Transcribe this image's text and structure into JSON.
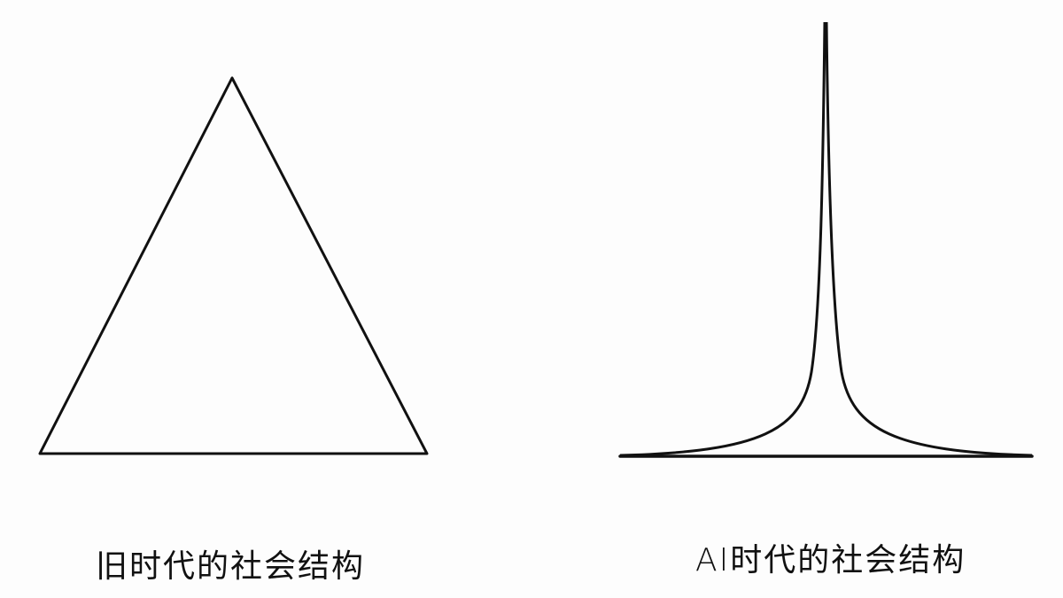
{
  "diagram": {
    "left": {
      "shape": "triangle",
      "caption": "旧时代的社会结构"
    },
    "right": {
      "shape": "spike",
      "caption": "AI时代的社会结构"
    },
    "stroke_color": "#111111",
    "background_color": "#fdfdfd"
  }
}
